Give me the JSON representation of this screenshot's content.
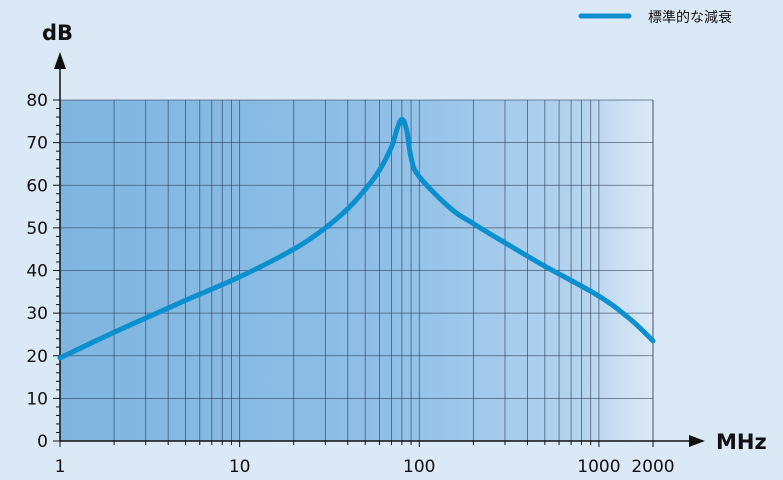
{
  "colors": {
    "background": "#dbe9f6",
    "plot_start": "#7fb5e0",
    "plot_end": "#dbe9f6",
    "series": "#0a8fcf",
    "grid": "#2a3a52",
    "axis": "#111111"
  },
  "chart_data": {
    "type": "line",
    "x_scale": "log",
    "xlabel": "MHz",
    "ylabel": "dB",
    "xlim": [
      1,
      2000
    ],
    "ylim": [
      0,
      80
    ],
    "x_ticks": [
      1,
      10,
      100,
      1000,
      2000
    ],
    "x_tick_labels": [
      "1",
      "10",
      "100",
      "1000",
      "2000"
    ],
    "y_ticks": [
      0,
      10,
      20,
      30,
      40,
      50,
      60,
      70,
      80
    ],
    "y_tick_labels": [
      "0",
      "10",
      "20",
      "30",
      "40",
      "50",
      "60",
      "70",
      "80"
    ],
    "grid": true,
    "legend_position": "top-right",
    "series": [
      {
        "name": "標準的な減衰",
        "x": [
          1,
          2,
          5,
          10,
          20,
          30,
          40,
          50,
          60,
          70,
          75,
          80,
          85,
          90,
          100,
          150,
          200,
          300,
          500,
          1000,
          1500,
          2000
        ],
        "y": [
          19.5,
          25.5,
          33,
          38.5,
          45,
          50,
          54.5,
          59,
          63.5,
          69,
          73,
          75.5,
          73,
          66.5,
          62,
          54.5,
          51,
          46.5,
          41,
          34,
          28.5,
          23.5
        ]
      }
    ]
  }
}
